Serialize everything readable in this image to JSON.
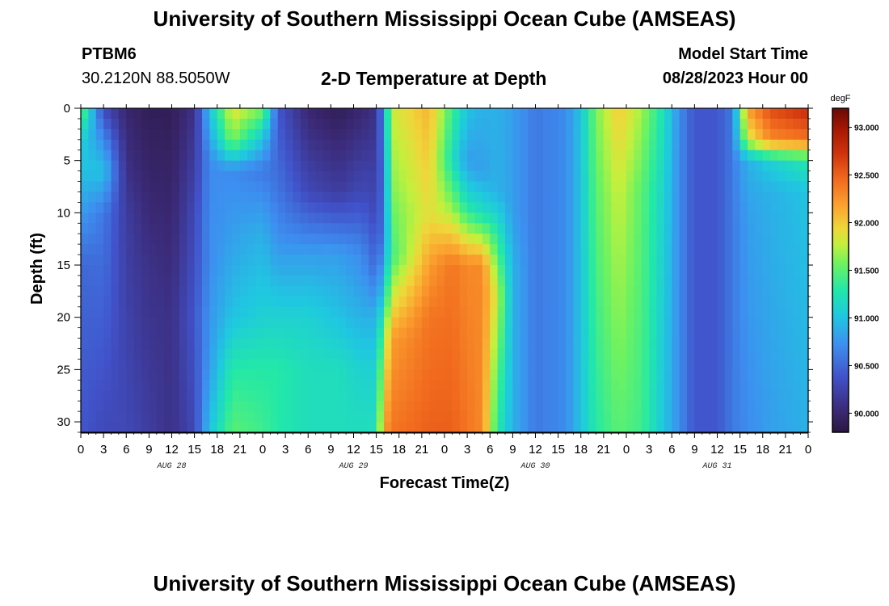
{
  "header": {
    "title": "University of Southern Mississippi Ocean Cube (AMSEAS)",
    "station": "PTBM6",
    "coords": "30.2120N  88.5050W",
    "subtitle": "2-D Temperature at Depth",
    "model_start_label": "Model Start Time",
    "model_start_value": "08/28/2023 Hour 00"
  },
  "footer": {
    "title": "University of Southern Mississippi Ocean Cube (AMSEAS)"
  },
  "chart_data": {
    "type": "heatmap",
    "xlabel": "Forecast Time(Z)",
    "ylabel": "Depth (ft)",
    "x_tick_labels": [
      "0",
      "3",
      "6",
      "9",
      "12",
      "15",
      "18",
      "21",
      "0",
      "3",
      "6",
      "9",
      "12",
      "15",
      "18",
      "21",
      "0",
      "3",
      "6",
      "9",
      "12",
      "15",
      "18",
      "21",
      "0",
      "3",
      "6",
      "9",
      "12",
      "15",
      "18",
      "21",
      "0"
    ],
    "x_range_hours": [
      0,
      96
    ],
    "date_labels": [
      {
        "text": "AUG 28",
        "hour": 12
      },
      {
        "text": "AUG 29",
        "hour": 36
      },
      {
        "text": "AUG 30",
        "hour": 60
      },
      {
        "text": "AUG 31",
        "hour": 84
      }
    ],
    "y_ticks": [
      "0",
      "5",
      "10",
      "15",
      "20",
      "25",
      "30"
    ],
    "y_range_ft": [
      0,
      31
    ],
    "y_inverted": true,
    "colorbar": {
      "unit": "degF",
      "ticks": [
        "93.000",
        "92.500",
        "92.000",
        "91.500",
        "91.000",
        "90.500",
        "90.000"
      ],
      "range": [
        89.8,
        93.2
      ]
    },
    "grid": false,
    "temperature_columns_degF": [
      {
        "hour": 0,
        "profile": [
          [
            0,
            91.6
          ],
          [
            3,
            91.1
          ],
          [
            8,
            90.9
          ],
          [
            15,
            90.5
          ],
          [
            31,
            90.4
          ]
        ]
      },
      {
        "hour": 3,
        "profile": [
          [
            0,
            90.3
          ],
          [
            3,
            90.7
          ],
          [
            6,
            91.0
          ],
          [
            10,
            90.6
          ],
          [
            31,
            90.3
          ]
        ]
      },
      {
        "hour": 6,
        "profile": [
          [
            0,
            90.0
          ],
          [
            6,
            90.1
          ],
          [
            10,
            90.2
          ],
          [
            31,
            90.3
          ]
        ]
      },
      {
        "hour": 9,
        "profile": [
          [
            0,
            89.9
          ],
          [
            8,
            90.0
          ],
          [
            15,
            90.1
          ],
          [
            31,
            90.2
          ]
        ]
      },
      {
        "hour": 12,
        "profile": [
          [
            0,
            89.9
          ],
          [
            10,
            90.0
          ],
          [
            20,
            90.1
          ],
          [
            31,
            90.1
          ]
        ]
      },
      {
        "hour": 15,
        "profile": [
          [
            0,
            90.1
          ],
          [
            10,
            90.3
          ],
          [
            20,
            90.4
          ],
          [
            31,
            90.3
          ]
        ]
      },
      {
        "hour": 17,
        "profile": [
          [
            0,
            91.0
          ],
          [
            5,
            90.7
          ],
          [
            15,
            90.7
          ],
          [
            25,
            90.8
          ],
          [
            31,
            91.0
          ]
        ]
      },
      {
        "hour": 20,
        "profile": [
          [
            0,
            91.9
          ],
          [
            3,
            91.6
          ],
          [
            6,
            90.7
          ],
          [
            12,
            90.8
          ],
          [
            20,
            91.0
          ],
          [
            25,
            91.3
          ],
          [
            31,
            91.5
          ]
        ]
      },
      {
        "hour": 24,
        "profile": [
          [
            0,
            91.6
          ],
          [
            3,
            91.0
          ],
          [
            6,
            90.6
          ],
          [
            12,
            90.9
          ],
          [
            20,
            91.1
          ],
          [
            25,
            91.3
          ],
          [
            31,
            91.4
          ]
        ]
      },
      {
        "hour": 26,
        "profile": [
          [
            0,
            90.4
          ],
          [
            5,
            90.5
          ],
          [
            12,
            90.7
          ],
          [
            20,
            91.1
          ],
          [
            25,
            91.3
          ],
          [
            31,
            91.3
          ]
        ]
      },
      {
        "hour": 30,
        "profile": [
          [
            0,
            90.0
          ],
          [
            8,
            90.3
          ],
          [
            14,
            90.8
          ],
          [
            20,
            91.1
          ],
          [
            25,
            91.2
          ],
          [
            31,
            91.2
          ]
        ]
      },
      {
        "hour": 34,
        "profile": [
          [
            0,
            89.9
          ],
          [
            8,
            90.2
          ],
          [
            14,
            90.8
          ],
          [
            20,
            91.0
          ],
          [
            25,
            91.2
          ],
          [
            31,
            91.2
          ]
        ]
      },
      {
        "hour": 37,
        "profile": [
          [
            0,
            90.0
          ],
          [
            8,
            90.3
          ],
          [
            14,
            90.7
          ],
          [
            20,
            90.9
          ],
          [
            25,
            91.1
          ],
          [
            31,
            91.2
          ]
        ]
      },
      {
        "hour": 39,
        "profile": [
          [
            0,
            90.1
          ],
          [
            10,
            90.3
          ],
          [
            15,
            90.5
          ],
          [
            20,
            90.9
          ],
          [
            25,
            91.1
          ],
          [
            31,
            91.2
          ]
        ]
      },
      {
        "hour": 40,
        "profile": [
          [
            0,
            90.8
          ],
          [
            6,
            90.6
          ],
          [
            12,
            90.6
          ],
          [
            18,
            91.1
          ],
          [
            22,
            91.6
          ],
          [
            31,
            92.2
          ]
        ]
      },
      {
        "hour": 41,
        "profile": [
          [
            0,
            91.8
          ],
          [
            8,
            91.6
          ],
          [
            14,
            91.4
          ],
          [
            18,
            91.8
          ],
          [
            22,
            92.2
          ],
          [
            31,
            92.4
          ]
        ]
      },
      {
        "hour": 46,
        "profile": [
          [
            0,
            92.1
          ],
          [
            10,
            91.9
          ],
          [
            15,
            92.2
          ],
          [
            20,
            92.4
          ],
          [
            31,
            92.5
          ]
        ]
      },
      {
        "hour": 49,
        "profile": [
          [
            0,
            91.4
          ],
          [
            5,
            91.2
          ],
          [
            9,
            91.6
          ],
          [
            15,
            92.4
          ],
          [
            31,
            92.5
          ]
        ]
      },
      {
        "hour": 51,
        "profile": [
          [
            0,
            91.0
          ],
          [
            5,
            90.8
          ],
          [
            9,
            91.2
          ],
          [
            15,
            92.3
          ],
          [
            31,
            92.4
          ]
        ]
      },
      {
        "hour": 53,
        "profile": [
          [
            0,
            90.9
          ],
          [
            6,
            90.8
          ],
          [
            10,
            91.2
          ],
          [
            15,
            92.3
          ],
          [
            31,
            92.3
          ]
        ]
      },
      {
        "hour": 55,
        "profile": [
          [
            0,
            90.9
          ],
          [
            8,
            90.9
          ],
          [
            12,
            91.3
          ],
          [
            18,
            91.8
          ],
          [
            25,
            91.5
          ],
          [
            31,
            91.3
          ]
        ]
      },
      {
        "hour": 57,
        "profile": [
          [
            0,
            90.8
          ],
          [
            10,
            90.8
          ],
          [
            15,
            90.9
          ],
          [
            20,
            90.9
          ],
          [
            31,
            90.9
          ]
        ]
      },
      {
        "hour": 60,
        "profile": [
          [
            0,
            90.6
          ],
          [
            31,
            90.6
          ]
        ]
      },
      {
        "hour": 64,
        "profile": [
          [
            0,
            90.7
          ],
          [
            31,
            90.7
          ]
        ]
      },
      {
        "hour": 66,
        "profile": [
          [
            0,
            91.0
          ],
          [
            31,
            91.0
          ]
        ]
      },
      {
        "hour": 68,
        "profile": [
          [
            0,
            91.6
          ],
          [
            8,
            91.5
          ],
          [
            31,
            91.3
          ]
        ]
      },
      {
        "hour": 71,
        "profile": [
          [
            0,
            92.0
          ],
          [
            8,
            91.8
          ],
          [
            31,
            91.5
          ]
        ]
      },
      {
        "hour": 74,
        "profile": [
          [
            0,
            91.7
          ],
          [
            8,
            91.5
          ],
          [
            31,
            91.4
          ]
        ]
      },
      {
        "hour": 77,
        "profile": [
          [
            0,
            91.2
          ],
          [
            8,
            91.1
          ],
          [
            31,
            91.0
          ]
        ]
      },
      {
        "hour": 79,
        "profile": [
          [
            0,
            90.7
          ],
          [
            31,
            90.7
          ]
        ]
      },
      {
        "hour": 81,
        "profile": [
          [
            0,
            90.4
          ],
          [
            31,
            90.4
          ]
        ]
      },
      {
        "hour": 84,
        "profile": [
          [
            0,
            90.4
          ],
          [
            31,
            90.4
          ]
        ]
      },
      {
        "hour": 86,
        "profile": [
          [
            0,
            90.6
          ],
          [
            31,
            90.6
          ]
        ]
      },
      {
        "hour": 88,
        "profile": [
          [
            0,
            92.2
          ],
          [
            3,
            91.8
          ],
          [
            5,
            90.9
          ],
          [
            10,
            90.8
          ],
          [
            31,
            90.7
          ]
        ]
      },
      {
        "hour": 91,
        "profile": [
          [
            0,
            92.6
          ],
          [
            3,
            92.3
          ],
          [
            5,
            91.1
          ],
          [
            8,
            90.9
          ],
          [
            31,
            90.8
          ]
        ]
      },
      {
        "hour": 96,
        "profile": [
          [
            0,
            92.8
          ],
          [
            3,
            92.4
          ],
          [
            5,
            91.3
          ],
          [
            8,
            91.0
          ],
          [
            31,
            90.9
          ]
        ]
      }
    ]
  }
}
